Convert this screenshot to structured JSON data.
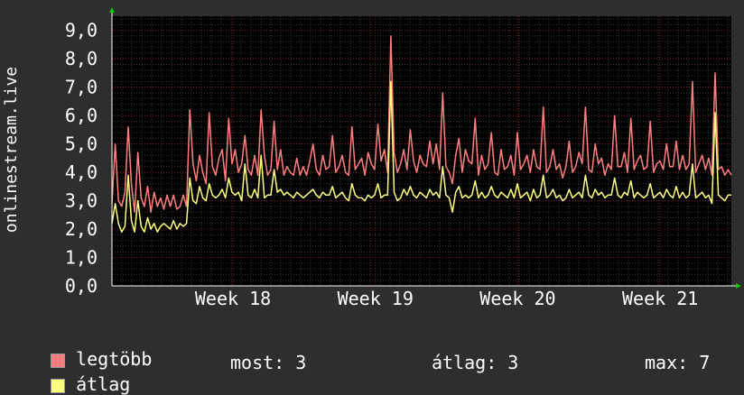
{
  "chart_data": {
    "type": "line",
    "ylabel": "onlinestream.live",
    "ylim": [
      0,
      9.5
    ],
    "y_ticks": [
      "0,0",
      "1,0",
      "2,0",
      "3,0",
      "4,0",
      "5,0",
      "6,0",
      "7,0",
      "8,0",
      "9,0"
    ],
    "x_ticks": [
      "Week 18",
      "Week 19",
      "Week 20",
      "Week 21"
    ],
    "grid": true,
    "background": "#000000",
    "series": [
      {
        "name": "legtöbb",
        "color": "#ff7f7f",
        "values": [
          2.9,
          5.0,
          3.0,
          2.8,
          3.3,
          5.6,
          3.6,
          2.6,
          4.7,
          3.1,
          2.8,
          3.5,
          2.6,
          3.3,
          2.8,
          3.1,
          2.7,
          3.2,
          2.8,
          3.2,
          2.7,
          2.8,
          3.2,
          2.8,
          6.2,
          4.3,
          3.7,
          4.6,
          4.0,
          3.6,
          6.1,
          4.2,
          3.9,
          4.5,
          4.8,
          3.7,
          5.9,
          4.3,
          4.8,
          4.0,
          4.3,
          5.3,
          4.1,
          3.9,
          4.6,
          3.9,
          6.2,
          4.6,
          3.9,
          4.1,
          5.8,
          4.1,
          4.8,
          3.9,
          4.2,
          4.0,
          3.9,
          4.5,
          3.9,
          4.2,
          3.9,
          4.4,
          5.0,
          4.1,
          3.9,
          4.6,
          4.1,
          4.2,
          5.3,
          4.0,
          4.2,
          4.6,
          4.0,
          3.9,
          5.6,
          4.1,
          4.3,
          4.5,
          3.9,
          4.7,
          4.3,
          4.1,
          5.7,
          4.4,
          4.8,
          4.0,
          8.8,
          4.7,
          4.0,
          4.3,
          4.8,
          4.1,
          5.5,
          4.4,
          4.0,
          4.6,
          4.3,
          4.2,
          5.1,
          4.3,
          5.0,
          4.1,
          6.8,
          4.2,
          4.0,
          3.6,
          4.6,
          5.2,
          4.0,
          4.8,
          4.4,
          4.3,
          5.9,
          3.9,
          4.6,
          4.1,
          4.3,
          5.4,
          4.0,
          3.9,
          4.8,
          4.1,
          4.2,
          4.6,
          3.9,
          5.4,
          4.1,
          4.3,
          4.6,
          4.0,
          4.8,
          4.2,
          4.1,
          6.3,
          4.0,
          4.2,
          4.8,
          4.1,
          4.3,
          3.8,
          4.2,
          5.1,
          4.0,
          4.2,
          4.7,
          4.3,
          6.3,
          4.1,
          4.0,
          5.0,
          4.3,
          4.5,
          3.9,
          4.3,
          4.1,
          6.0,
          4.2,
          4.2,
          4.7,
          4.0,
          5.9,
          4.1,
          4.4,
          4.6,
          4.1,
          4.2,
          5.8,
          4.0,
          4.3,
          4.4,
          4.1,
          5.0,
          4.2,
          4.2,
          5.1,
          4.1,
          4.6,
          4.1,
          4.3,
          7.2,
          4.0,
          4.3,
          4.6,
          4.1,
          4.5,
          3.9,
          7.5,
          4.1,
          4.2,
          3.9,
          4.1,
          3.9
        ]
      },
      {
        "name": "átlag",
        "color": "#ffff80",
        "values": [
          2.2,
          2.9,
          2.2,
          1.9,
          2.1,
          3.9,
          2.3,
          1.9,
          3.0,
          2.1,
          1.9,
          2.4,
          2.0,
          2.2,
          1.9,
          2.1,
          2.2,
          2.1,
          2.0,
          2.3,
          2.0,
          2.2,
          2.1,
          2.2,
          3.8,
          3.0,
          2.9,
          3.5,
          3.1,
          3.0,
          3.6,
          3.2,
          3.1,
          3.2,
          3.4,
          3.1,
          3.8,
          3.3,
          3.2,
          3.3,
          3.0,
          4.3,
          3.2,
          3.1,
          3.4,
          3.1,
          4.6,
          3.1,
          3.2,
          3.2,
          4.1,
          3.3,
          3.4,
          3.2,
          3.3,
          3.2,
          3.1,
          3.3,
          3.2,
          3.1,
          3.2,
          3.3,
          3.4,
          3.2,
          3.1,
          3.3,
          3.2,
          3.2,
          3.5,
          3.1,
          3.2,
          3.3,
          3.1,
          3.0,
          3.6,
          3.2,
          3.1,
          3.1,
          3.0,
          3.2,
          3.1,
          3.2,
          3.6,
          3.1,
          3.2,
          3.2,
          7.2,
          3.3,
          3.0,
          3.1,
          3.4,
          3.2,
          3.5,
          3.2,
          3.1,
          3.3,
          3.2,
          3.1,
          3.4,
          3.2,
          3.3,
          3.1,
          4.2,
          3.2,
          3.1,
          2.6,
          3.3,
          3.5,
          3.1,
          3.2,
          3.1,
          3.2,
          3.7,
          3.1,
          3.3,
          3.1,
          3.2,
          3.5,
          3.2,
          3.1,
          3.3,
          3.2,
          3.1,
          3.4,
          3.1,
          3.6,
          3.1,
          3.2,
          3.3,
          3.0,
          3.4,
          3.1,
          3.2,
          3.9,
          3.1,
          3.2,
          3.4,
          3.1,
          3.2,
          3.0,
          3.1,
          3.4,
          3.1,
          3.2,
          3.3,
          3.1,
          3.9,
          3.2,
          3.1,
          3.4,
          3.2,
          3.3,
          3.1,
          3.2,
          3.2,
          3.8,
          3.2,
          3.1,
          3.3,
          3.2,
          3.7,
          3.1,
          3.3,
          3.2,
          3.1,
          3.2,
          3.6,
          3.1,
          3.2,
          3.3,
          3.1,
          3.4,
          3.2,
          3.1,
          3.5,
          3.1,
          3.3,
          3.1,
          3.2,
          4.3,
          3.1,
          3.2,
          3.3,
          3.1,
          3.2,
          2.9,
          6.1,
          3.2,
          3.1,
          3.0,
          3.2,
          3.2
        ]
      }
    ]
  },
  "legend": {
    "max_label": "legtöbb",
    "avg_label": "átlag"
  },
  "stats": {
    "current": "most: 3",
    "average": "átlag: 3",
    "maximum": "max: 7"
  }
}
